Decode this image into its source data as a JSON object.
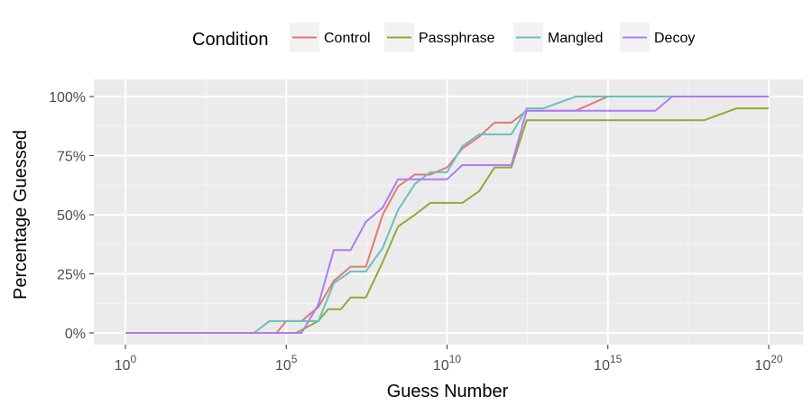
{
  "chart_data": {
    "type": "line",
    "xlabel": "Guess Number",
    "ylabel": "Percentage Guessed",
    "x_scale": "log10",
    "xlim": [
      1,
      1e+20
    ],
    "ylim": [
      0,
      100
    ],
    "grid": true,
    "legend": {
      "title": "Condition",
      "position": "top"
    },
    "x_ticks": [
      {
        "base": "10",
        "exp": "0",
        "value": 1
      },
      {
        "base": "10",
        "exp": "5",
        "value": 100000.0
      },
      {
        "base": "10",
        "exp": "10",
        "value": 10000000000.0
      },
      {
        "base": "10",
        "exp": "15",
        "value": 1000000000000000.0
      },
      {
        "base": "10",
        "exp": "20",
        "value": 1e+20
      }
    ],
    "y_ticks": [
      {
        "label": "0%",
        "value": 0
      },
      {
        "label": "25%",
        "value": 25
      },
      {
        "label": "50%",
        "value": 50
      },
      {
        "label": "75%",
        "value": 75
      },
      {
        "label": "100%",
        "value": 100
      }
    ],
    "series": [
      {
        "name": "Control",
        "color": "#e07b6e",
        "points": [
          [
            1,
            0
          ],
          [
            10000.0,
            0
          ],
          [
            30000.0,
            0
          ],
          [
            50000.0,
            0
          ],
          [
            100000.0,
            5
          ],
          [
            300000.0,
            5
          ],
          [
            1000000.0,
            11
          ],
          [
            3000000.0,
            22
          ],
          [
            10000000.0,
            28
          ],
          [
            30000000.0,
            28
          ],
          [
            100000000.0,
            50
          ],
          [
            300000000.0,
            62
          ],
          [
            1000000000.0,
            67
          ],
          [
            3000000000.0,
            67
          ],
          [
            10000000000.0,
            70
          ],
          [
            30000000000.0,
            78
          ],
          [
            100000000000.0,
            83
          ],
          [
            300000000000.0,
            89
          ],
          [
            1000000000000.0,
            89
          ],
          [
            3000000000000.0,
            94
          ],
          [
            10000000000000.0,
            94
          ],
          [
            100000000000000.0,
            94
          ],
          [
            1000000000000000.0,
            100
          ],
          [
            1e+20,
            100
          ]
        ]
      },
      {
        "name": "Passphrase",
        "color": "#8eac37",
        "points": [
          [
            1,
            0
          ],
          [
            100000.0,
            0
          ],
          [
            200000.0,
            0
          ],
          [
            1000000.0,
            5
          ],
          [
            2000000.0,
            10
          ],
          [
            5000000.0,
            10
          ],
          [
            10000000.0,
            15
          ],
          [
            30000000.0,
            15
          ],
          [
            100000000.0,
            30
          ],
          [
            300000000.0,
            45
          ],
          [
            1000000000.0,
            50
          ],
          [
            3000000000.0,
            55
          ],
          [
            10000000000.0,
            55
          ],
          [
            30000000000.0,
            55
          ],
          [
            100000000000.0,
            60
          ],
          [
            300000000000.0,
            70
          ],
          [
            1000000000000.0,
            70
          ],
          [
            3000000000000.0,
            90
          ],
          [
            10000000000000.0,
            90
          ],
          [
            1000000000000000.0,
            90
          ],
          [
            1e+17,
            90
          ],
          [
            1e+18,
            90
          ],
          [
            1e+19,
            95
          ],
          [
            1e+20,
            95
          ]
        ]
      },
      {
        "name": "Mangled",
        "color": "#6bbfc2",
        "points": [
          [
            1,
            0
          ],
          [
            10000.0,
            0
          ],
          [
            30000.0,
            5
          ],
          [
            100000.0,
            5
          ],
          [
            1000000.0,
            5
          ],
          [
            3000000.0,
            21
          ],
          [
            10000000.0,
            26
          ],
          [
            30000000.0,
            26
          ],
          [
            100000000.0,
            36
          ],
          [
            300000000.0,
            52
          ],
          [
            1000000000.0,
            63
          ],
          [
            3000000000.0,
            68
          ],
          [
            10000000000.0,
            68
          ],
          [
            30000000000.0,
            79
          ],
          [
            100000000000.0,
            84
          ],
          [
            300000000000.0,
            84
          ],
          [
            1000000000000.0,
            84
          ],
          [
            3000000000000.0,
            95
          ],
          [
            10000000000000.0,
            95
          ],
          [
            100000000000000.0,
            100
          ],
          [
            1000000000000000.0,
            100
          ],
          [
            1e+20,
            100
          ]
        ]
      },
      {
        "name": "Decoy",
        "color": "#b07bf5",
        "points": [
          [
            1,
            0
          ],
          [
            100000.0,
            0
          ],
          [
            300000.0,
            0
          ],
          [
            1000000.0,
            12
          ],
          [
            3000000.0,
            35
          ],
          [
            10000000.0,
            35
          ],
          [
            30000000.0,
            47
          ],
          [
            100000000.0,
            53
          ],
          [
            300000000.0,
            65
          ],
          [
            1000000000.0,
            65
          ],
          [
            3000000000.0,
            65
          ],
          [
            10000000000.0,
            65
          ],
          [
            30000000000.0,
            71
          ],
          [
            100000000000.0,
            71
          ],
          [
            300000000000.0,
            71
          ],
          [
            1000000000000.0,
            71
          ],
          [
            3000000000000.0,
            94
          ],
          [
            10000000000000.0,
            94
          ],
          [
            1000000000000000.0,
            94
          ],
          [
            1e+16,
            94
          ],
          [
            3e+16,
            94
          ],
          [
            1e+17,
            100
          ],
          [
            1e+20,
            100
          ]
        ]
      }
    ]
  }
}
